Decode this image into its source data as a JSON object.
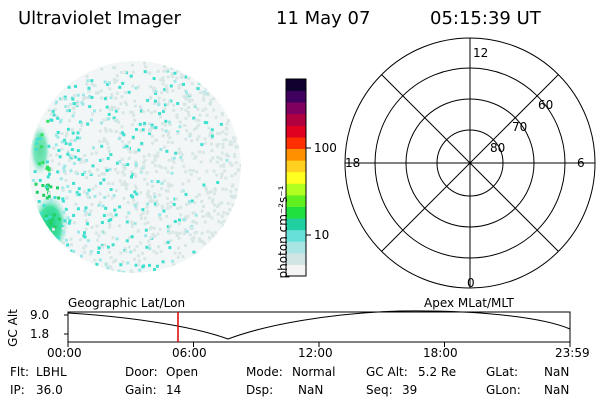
{
  "header": {
    "instrument": "Ultraviolet Imager",
    "date": "11 May 07",
    "time": "05:15:39 UT"
  },
  "colorbar": {
    "label": "photon cm⁻²s⁻¹",
    "ticks": [
      "100",
      "10"
    ],
    "colors": [
      "#f4f4f4",
      "#d0e4e4",
      "#a8e6e6",
      "#66e0d8",
      "#20d0a0",
      "#20e040",
      "#60f020",
      "#b0ff20",
      "#ffff20",
      "#ffd020",
      "#ff9000",
      "#ff3000",
      "#e00020",
      "#b00040",
      "#800060",
      "#400060",
      "#100030"
    ]
  },
  "polar": {
    "mlt_labels": {
      "top": "12",
      "left": "18",
      "right": "6",
      "bottom": "0"
    },
    "lat_labels": [
      "60",
      "70",
      "80"
    ]
  },
  "timeline": {
    "ylabel": "GC Alt",
    "yticks": [
      "9.0",
      "1.8"
    ],
    "left_label": "Geographic Lat/Lon",
    "right_label": "Apex MLat/MLT",
    "xticks": [
      "00:00",
      "06:00",
      "12:00",
      "18:00",
      "23:59"
    ],
    "marker_time_hours": 5.26,
    "marker_color": "#dd0000"
  },
  "info": {
    "col1": [
      {
        "label": "Flt:",
        "value": "LBHL"
      },
      {
        "label": "IP:",
        "value": "36.0"
      }
    ],
    "col2": [
      {
        "label": "Door:",
        "value": "Open"
      },
      {
        "label": "Gain:",
        "value": "14"
      }
    ],
    "col3": [
      {
        "label": "Mode:",
        "value": "Normal"
      },
      {
        "label": "Dsp:",
        "value": "NaN"
      }
    ],
    "col4": [
      {
        "label": "GC Alt:",
        "value": "5.2 Re"
      },
      {
        "label": "Seq:",
        "value": "39"
      }
    ],
    "col5": [
      {
        "label": "GLat:",
        "value": "NaN"
      },
      {
        "label": "GLon:",
        "value": "NaN"
      }
    ]
  }
}
